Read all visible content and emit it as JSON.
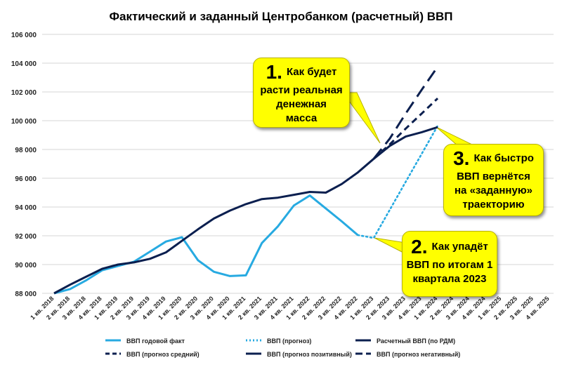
{
  "chart_data": {
    "type": "line",
    "title": "Фактический и заданный Центробанком (расчетный) ВВП",
    "ylim": [
      88000,
      106000
    ],
    "yticks": [
      "88 000",
      "90 000",
      "92 000",
      "94 000",
      "96 000",
      "98 000",
      "100 000",
      "102 000",
      "104 000",
      "106 000"
    ],
    "categories": [
      "1 кв. 2018",
      "2 кв. 2018",
      "3 кв. 2018",
      "4 кв. 2018",
      "1 кв. 2019",
      "2 кв. 2019",
      "3 кв. 2019",
      "4 кв. 2019",
      "1 кв. 2020",
      "2 кв. 2020",
      "3 кв. 2020",
      "4 кв. 2020",
      "1 кв. 2021",
      "2 кв. 2021",
      "3 кв. 2021",
      "4 кв. 2021",
      "1 кв. 2022",
      "2 кв. 2022",
      "3 кв. 2022",
      "4 кв. 2022",
      "1 кв. 2023",
      "2 кв. 2023",
      "3 кв. 2023",
      "4 кв. 2023",
      "1 кв. 2024",
      "2 кв. 2024",
      "3 кв. 2024",
      "4 кв. 2024",
      "1 кв. 2025",
      "2 кв. 2025",
      "3 кв. 2025",
      "4 кв. 2025"
    ],
    "grid": true,
    "legend_position": "bottom",
    "series": [
      {
        "name": "ВВП годовой факт",
        "color": "#27AAE1",
        "style": "solid",
        "values": [
          88000,
          88300,
          88900,
          89600,
          89900,
          90200,
          90900,
          91600,
          91900,
          90300,
          89500,
          89200,
          89250,
          91500,
          92650,
          94100,
          94800,
          93900,
          93000,
          92050,
          null,
          null,
          null,
          null,
          null,
          null,
          null,
          null,
          null,
          null,
          null,
          null
        ]
      },
      {
        "name": "ВВП (прогноз)",
        "color": "#27AAE1",
        "style": "dotted",
        "values": [
          null,
          null,
          null,
          null,
          null,
          null,
          null,
          null,
          null,
          null,
          null,
          null,
          null,
          null,
          null,
          null,
          null,
          null,
          null,
          92050,
          91850,
          93800,
          95750,
          97700,
          99650,
          null,
          null,
          null,
          null,
          null,
          null,
          null
        ]
      },
      {
        "name": "Расчетный ВВП (по РДМ)",
        "color": "#0B1F4F",
        "style": "solid",
        "values": [
          88000,
          88600,
          89150,
          89700,
          90000,
          90150,
          90400,
          90850,
          91650,
          92450,
          93200,
          93750,
          94200,
          94550,
          94650,
          94850,
          95050,
          95000,
          95600,
          96400,
          97350,
          null,
          null,
          null,
          null,
          null,
          null,
          null,
          null,
          null,
          null,
          null
        ]
      },
      {
        "name": "ВВП (прогноз средний)",
        "color": "#0B1F4F",
        "style": "dash",
        "values": [
          null,
          null,
          null,
          null,
          null,
          null,
          null,
          null,
          null,
          null,
          null,
          null,
          null,
          null,
          null,
          null,
          null,
          null,
          null,
          null,
          97350,
          98350,
          99450,
          100500,
          101550,
          null,
          null,
          null,
          null,
          null,
          null,
          null
        ]
      },
      {
        "name": "ВВП (прогноз позитивный)",
        "color": "#0B1F4F",
        "style": "solid",
        "values": [
          null,
          null,
          null,
          null,
          null,
          null,
          null,
          null,
          null,
          null,
          null,
          null,
          null,
          null,
          null,
          null,
          null,
          null,
          null,
          null,
          97350,
          98250,
          98900,
          99200,
          99550,
          null,
          null,
          null,
          null,
          null,
          null,
          null
        ]
      },
      {
        "name": "ВВП (прогноз негативный)",
        "color": "#0B1F4F",
        "style": "longdash",
        "values": [
          null,
          null,
          null,
          null,
          null,
          null,
          null,
          null,
          null,
          null,
          null,
          null,
          null,
          null,
          null,
          null,
          null,
          null,
          null,
          null,
          97350,
          98750,
          100500,
          102150,
          103750,
          null,
          null,
          null,
          null,
          null,
          null,
          null
        ]
      }
    ],
    "legend": [
      {
        "label": "ВВП годовой факт",
        "style": "solid-light"
      },
      {
        "label": "ВВП (прогноз)",
        "style": "dotted-light"
      },
      {
        "label": "Расчетный ВВП (по РДМ)",
        "style": "solid-dark"
      },
      {
        "label": "ВВП (прогноз средний)",
        "style": "dash-dark"
      },
      {
        "label": "ВВП (прогноз позитивный)",
        "style": "solid-dark"
      },
      {
        "label": "ВВП (прогноз негативный)",
        "style": "longdash-dark"
      }
    ],
    "annotations": [
      {
        "number": "1.",
        "lines": [
          "Как будет",
          "расти реальная",
          "денежная",
          "масса"
        ]
      },
      {
        "number": "2.",
        "lines": [
          "Как упадёт",
          "ВВП по итогам 1",
          "квартала 2023"
        ]
      },
      {
        "number": "3.",
        "lines": [
          "Как быстро",
          "ВВП вернётся",
          "на «заданную»",
          "траекторию"
        ]
      }
    ]
  }
}
